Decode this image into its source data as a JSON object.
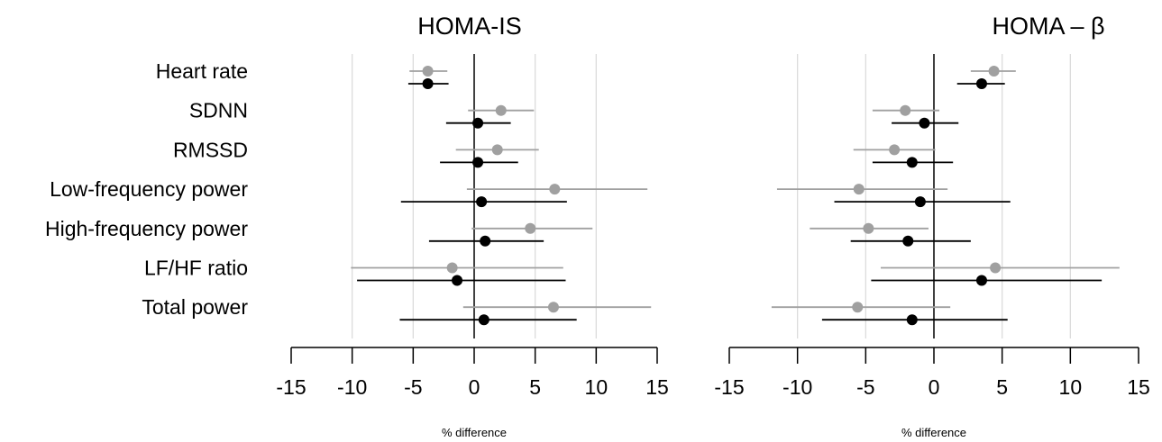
{
  "chart_data": {
    "type": "forest",
    "categories": [
      "Heart rate",
      "SDNN",
      "RMSSD",
      "Low-frequency power",
      "High-frequency power",
      "LF/HF ratio",
      "Total power"
    ],
    "colors": {
      "series_gray": "#a0a0a0",
      "series_black": "#000000",
      "grid": "#dcdcdc"
    },
    "panels": [
      {
        "title": "HOMA-IS",
        "xlabel": "% difference",
        "xlim": [
          -15,
          15
        ],
        "ticks": [
          -15,
          -10,
          -5,
          0,
          5,
          10,
          15
        ],
        "tick_labels": [
          "-15",
          "-10",
          "-5",
          "0",
          "5",
          "10",
          "15"
        ],
        "series": [
          {
            "color": "gray",
            "estimates": [
              -3.8,
              2.2,
              1.9,
              6.6,
              4.6,
              -1.8,
              6.5
            ],
            "lower": [
              -5.3,
              -0.5,
              -1.5,
              -0.6,
              -0.2,
              -10.1,
              -0.9
            ],
            "upper": [
              -2.2,
              4.9,
              5.3,
              14.2,
              9.7,
              7.3,
              14.5
            ]
          },
          {
            "color": "black",
            "estimates": [
              -3.8,
              0.3,
              0.3,
              0.6,
              0.9,
              -1.4,
              0.8
            ],
            "lower": [
              -5.4,
              -2.3,
              -2.8,
              -6.0,
              -3.7,
              -9.6,
              -6.1
            ],
            "upper": [
              -2.1,
              3.0,
              3.6,
              7.6,
              5.7,
              7.5,
              8.4
            ]
          }
        ]
      },
      {
        "title": "HOMA – β",
        "xlabel": "% difference",
        "xlim": [
          -15,
          15
        ],
        "ticks": [
          -15,
          -10,
          -5,
          0,
          5,
          10,
          15
        ],
        "tick_labels": [
          "-15",
          "-10",
          "-5",
          "0",
          "5",
          "10",
          "15"
        ],
        "series": [
          {
            "color": "gray",
            "estimates": [
              4.4,
              -2.1,
              -2.9,
              -5.5,
              -4.8,
              4.5,
              -5.6
            ],
            "lower": [
              2.7,
              -4.5,
              -5.9,
              -11.5,
              -9.1,
              -3.9,
              -11.9
            ],
            "upper": [
              6.0,
              0.4,
              0.1,
              1.0,
              -0.4,
              13.6,
              1.2
            ]
          },
          {
            "color": "black",
            "estimates": [
              3.5,
              -0.7,
              -1.6,
              -1.0,
              -1.9,
              3.5,
              -1.6
            ],
            "lower": [
              1.7,
              -3.1,
              -4.5,
              -7.3,
              -6.1,
              -4.6,
              -8.2
            ],
            "upper": [
              5.2,
              1.8,
              1.4,
              5.6,
              2.7,
              12.3,
              5.4
            ]
          }
        ]
      }
    ]
  }
}
